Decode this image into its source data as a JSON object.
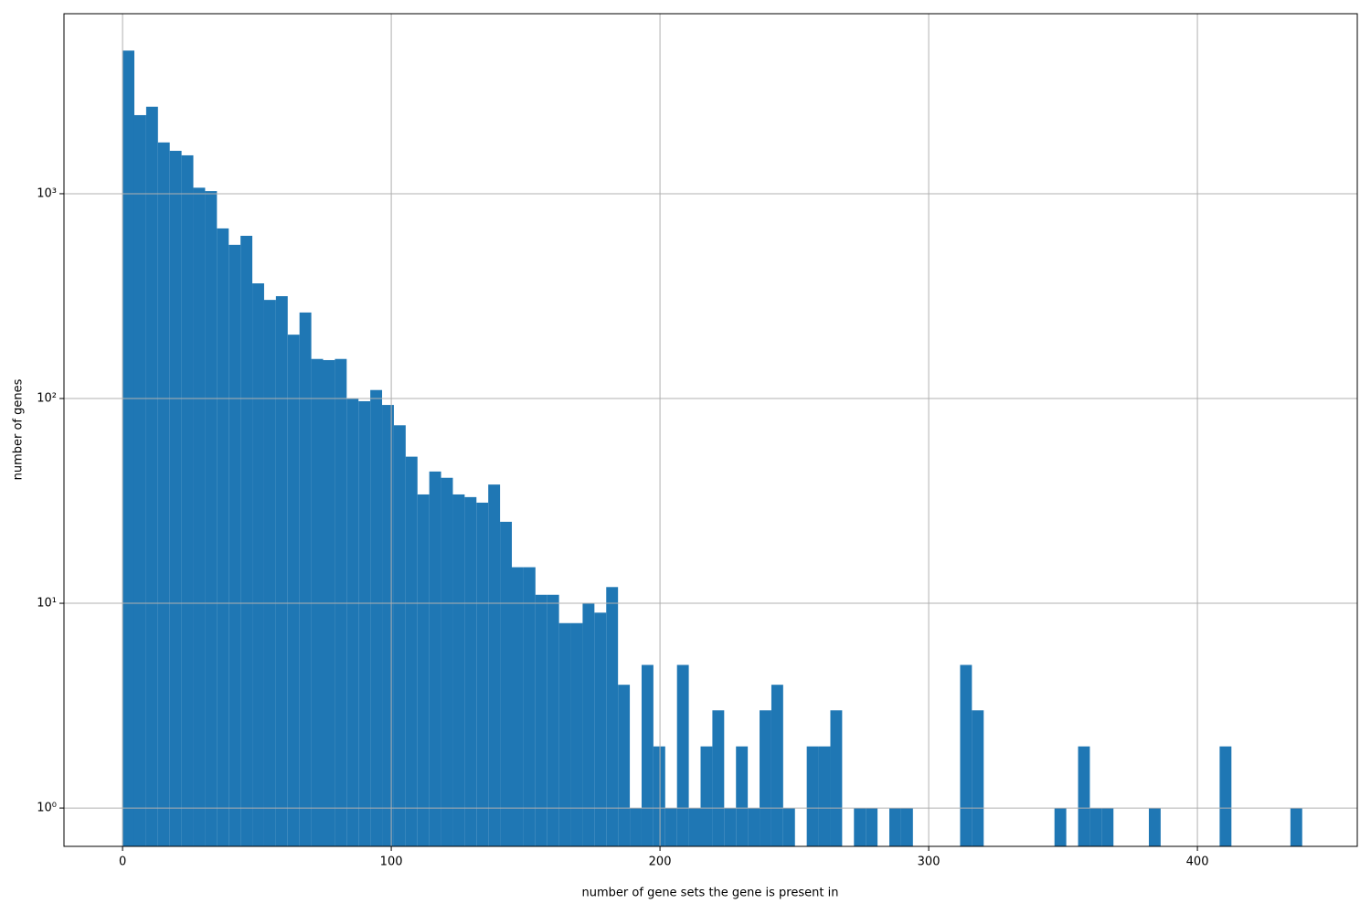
{
  "chart_data": {
    "type": "histogram",
    "xlabel": "number of gene sets the gene is present in",
    "ylabel": "number of genes",
    "color": "#1f77b4",
    "log_y": true,
    "grid": true,
    "bins": [
      0,
      4.39,
      8.78,
      13.17,
      17.56,
      21.95,
      26.34,
      30.73,
      35.12,
      39.51,
      43.9,
      48.29,
      52.68,
      57.07,
      61.46,
      65.85,
      70.24,
      74.63,
      79.02,
      83.41,
      87.8,
      92.19,
      96.58,
      100.97,
      105.36,
      109.75,
      114.14,
      118.53,
      122.92,
      127.31,
      131.7,
      136.09,
      140.48,
      144.87,
      149.26,
      153.65,
      158.04,
      162.43,
      166.82,
      171.21,
      175.6,
      179.99,
      184.38,
      188.77,
      193.16,
      197.55,
      201.94,
      206.33,
      210.72,
      215.11,
      219.5,
      223.89,
      228.28,
      232.67,
      237.06,
      241.45,
      245.84,
      250.23,
      254.62,
      259.01,
      263.4,
      267.79,
      272.18,
      276.57,
      280.96,
      285.35,
      289.74,
      294.13,
      298.52,
      302.91,
      307.3,
      311.69,
      316.08,
      320.47,
      324.86,
      329.25,
      333.64,
      338.03,
      342.42,
      346.81,
      351.2,
      355.59,
      359.98,
      364.37,
      368.76,
      373.15,
      377.54,
      381.93,
      386.32,
      390.71,
      395.1,
      399.49,
      403.88,
      408.27,
      412.66,
      417.05,
      421.44,
      425.83,
      430.22,
      434.61,
      439
    ],
    "values": [
      5000,
      2420,
      2660,
      1780,
      1620,
      1540,
      1070,
      1030,
      677,
      563,
      623,
      365,
      303,
      316,
      205,
      263,
      156,
      154,
      156,
      100,
      97,
      110,
      93,
      74,
      52,
      34,
      44,
      41,
      34,
      33,
      31,
      38,
      25,
      15,
      15,
      11,
      11,
      8,
      8,
      10,
      9,
      12,
      4,
      1,
      5,
      2,
      1,
      5,
      1,
      2,
      3,
      1,
      2,
      1,
      3,
      4,
      1,
      0,
      2,
      2,
      3,
      0,
      1,
      1,
      0,
      1,
      1,
      0,
      0,
      0,
      0,
      5,
      3,
      0,
      0,
      0,
      0,
      0,
      0,
      1,
      0,
      2,
      1,
      1,
      0,
      0,
      0,
      1,
      0,
      0,
      0,
      0,
      0,
      2,
      0,
      0,
      0,
      0,
      0,
      1
    ],
    "xlim": [
      -21.8,
      459.5
    ],
    "ylim": [
      0.65,
      7570
    ],
    "xticks": [
      0,
      100,
      200,
      300,
      400
    ],
    "yticks": [
      {
        "value": 1,
        "label": "10⁰"
      },
      {
        "value": 10,
        "label": "10¹"
      },
      {
        "value": 100,
        "label": "10²"
      },
      {
        "value": 1000,
        "label": "10³"
      }
    ]
  }
}
